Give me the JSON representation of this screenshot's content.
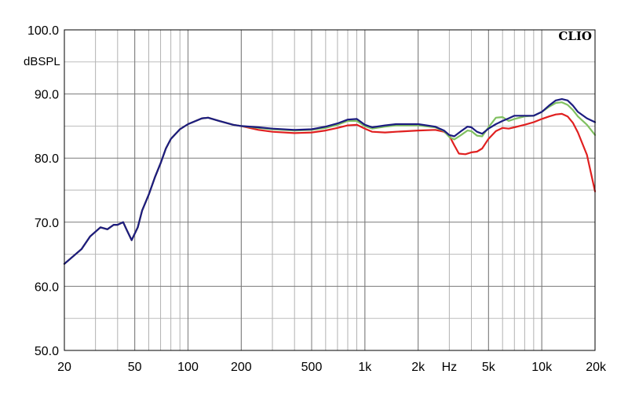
{
  "chart_data": {
    "type": "line",
    "title": "",
    "brand": "CLIO",
    "ylabel": "dBSPL",
    "xlabel": "Hz",
    "x_scale": "log",
    "xlim": [
      20,
      20000
    ],
    "ylim": [
      50,
      100
    ],
    "grid": true,
    "y_ticks": [
      {
        "value": 100,
        "label": "100.0"
      },
      {
        "value": 90,
        "label": "90.0"
      },
      {
        "value": 80,
        "label": "80.0"
      },
      {
        "value": 70,
        "label": "70.0"
      },
      {
        "value": 60,
        "label": "60.0"
      },
      {
        "value": 50,
        "label": "50.0"
      }
    ],
    "x_ticks": [
      {
        "value": 20,
        "label": "20"
      },
      {
        "value": 50,
        "label": "50"
      },
      {
        "value": 100,
        "label": "100"
      },
      {
        "value": 200,
        "label": "200"
      },
      {
        "value": 500,
        "label": "500"
      },
      {
        "value": 1000,
        "label": "1k"
      },
      {
        "value": 2000,
        "label": "2k"
      },
      {
        "value": 5000,
        "label": "5k"
      },
      {
        "value": 10000,
        "label": "10k"
      },
      {
        "value": 20000,
        "label": "20k"
      }
    ],
    "x_unit_label_at": 3000,
    "series": [
      {
        "color": "#e02020",
        "points": [
          [
            20,
            63.5
          ],
          [
            25,
            65.8
          ],
          [
            28,
            67.8
          ],
          [
            32,
            69.2
          ],
          [
            35,
            68.9
          ],
          [
            38,
            69.6
          ],
          [
            40,
            69.6
          ],
          [
            43,
            70
          ],
          [
            45,
            68.8
          ],
          [
            48,
            67.2
          ],
          [
            52,
            69.2
          ],
          [
            55,
            71.8
          ],
          [
            60,
            74.3
          ],
          [
            65,
            77
          ],
          [
            70,
            79.2
          ],
          [
            75,
            81.5
          ],
          [
            80,
            83
          ],
          [
            90,
            84.5
          ],
          [
            100,
            85.3
          ],
          [
            120,
            86.2
          ],
          [
            130,
            86.3
          ],
          [
            150,
            85.8
          ],
          [
            180,
            85.2
          ],
          [
            200,
            85
          ],
          [
            250,
            84.4
          ],
          [
            300,
            84.1
          ],
          [
            400,
            83.9
          ],
          [
            500,
            84
          ],
          [
            600,
            84.3
          ],
          [
            700,
            84.7
          ],
          [
            800,
            85.1
          ],
          [
            900,
            85.2
          ],
          [
            1000,
            84.6
          ],
          [
            1100,
            84.1
          ],
          [
            1300,
            84
          ],
          [
            1500,
            84.1
          ],
          [
            2000,
            84.3
          ],
          [
            2500,
            84.4
          ],
          [
            2800,
            84.1
          ],
          [
            3000,
            83.5
          ],
          [
            3200,
            82
          ],
          [
            3400,
            80.7
          ],
          [
            3700,
            80.6
          ],
          [
            4000,
            80.9
          ],
          [
            4300,
            81
          ],
          [
            4600,
            81.5
          ],
          [
            5000,
            83
          ],
          [
            5500,
            84.2
          ],
          [
            6000,
            84.7
          ],
          [
            6500,
            84.6
          ],
          [
            7000,
            84.8
          ],
          [
            8000,
            85.2
          ],
          [
            9000,
            85.6
          ],
          [
            10000,
            86.1
          ],
          [
            11000,
            86.5
          ],
          [
            12000,
            86.8
          ],
          [
            13000,
            86.9
          ],
          [
            14000,
            86.5
          ],
          [
            15000,
            85.5
          ],
          [
            16000,
            84
          ],
          [
            18000,
            80.5
          ],
          [
            20000,
            74.8
          ]
        ]
      },
      {
        "color": "#80c060",
        "points": [
          [
            20,
            63.5
          ],
          [
            25,
            65.8
          ],
          [
            28,
            67.8
          ],
          [
            32,
            69.2
          ],
          [
            35,
            68.9
          ],
          [
            38,
            69.6
          ],
          [
            40,
            69.6
          ],
          [
            43,
            70
          ],
          [
            45,
            68.8
          ],
          [
            48,
            67.2
          ],
          [
            52,
            69.2
          ],
          [
            55,
            71.8
          ],
          [
            60,
            74.3
          ],
          [
            65,
            77
          ],
          [
            70,
            79.2
          ],
          [
            75,
            81.5
          ],
          [
            80,
            83
          ],
          [
            90,
            84.5
          ],
          [
            100,
            85.3
          ],
          [
            120,
            86.2
          ],
          [
            130,
            86.3
          ],
          [
            150,
            85.8
          ],
          [
            180,
            85.2
          ],
          [
            200,
            85
          ],
          [
            250,
            84.7
          ],
          [
            300,
            84.5
          ],
          [
            400,
            84.3
          ],
          [
            500,
            84.4
          ],
          [
            600,
            84.7
          ],
          [
            700,
            85.2
          ],
          [
            800,
            85.8
          ],
          [
            900,
            85.8
          ],
          [
            1000,
            85
          ],
          [
            1100,
            84.6
          ],
          [
            1300,
            84.9
          ],
          [
            1500,
            85.1
          ],
          [
            2000,
            85.1
          ],
          [
            2500,
            84.8
          ],
          [
            2800,
            84.2
          ],
          [
            3000,
            83.3
          ],
          [
            3200,
            82.9
          ],
          [
            3500,
            83.6
          ],
          [
            3800,
            84.3
          ],
          [
            4000,
            84.2
          ],
          [
            4300,
            83.5
          ],
          [
            4600,
            83.4
          ],
          [
            5000,
            84.8
          ],
          [
            5500,
            86.3
          ],
          [
            6000,
            86.4
          ],
          [
            6500,
            85.8
          ],
          [
            7000,
            86.1
          ],
          [
            8000,
            86.5
          ],
          [
            9000,
            86.6
          ],
          [
            10000,
            87.2
          ],
          [
            11000,
            88
          ],
          [
            12000,
            88.6
          ],
          [
            13000,
            88.7
          ],
          [
            14000,
            88.3
          ],
          [
            15000,
            87.5
          ],
          [
            16000,
            86.5
          ],
          [
            18000,
            85.2
          ],
          [
            20000,
            83.6
          ]
        ]
      },
      {
        "color": "#1c1c80",
        "points": [
          [
            20,
            63.5
          ],
          [
            25,
            65.8
          ],
          [
            28,
            67.8
          ],
          [
            32,
            69.2
          ],
          [
            35,
            68.9
          ],
          [
            38,
            69.6
          ],
          [
            40,
            69.6
          ],
          [
            43,
            70
          ],
          [
            45,
            68.8
          ],
          [
            48,
            67.2
          ],
          [
            52,
            69.2
          ],
          [
            55,
            71.8
          ],
          [
            60,
            74.3
          ],
          [
            65,
            77
          ],
          [
            70,
            79.2
          ],
          [
            75,
            81.5
          ],
          [
            80,
            83
          ],
          [
            90,
            84.5
          ],
          [
            100,
            85.3
          ],
          [
            120,
            86.2
          ],
          [
            130,
            86.3
          ],
          [
            150,
            85.8
          ],
          [
            180,
            85.2
          ],
          [
            200,
            85
          ],
          [
            250,
            84.8
          ],
          [
            300,
            84.6
          ],
          [
            400,
            84.4
          ],
          [
            500,
            84.5
          ],
          [
            600,
            84.9
          ],
          [
            700,
            85.4
          ],
          [
            800,
            86
          ],
          [
            900,
            86.1
          ],
          [
            1000,
            85.2
          ],
          [
            1100,
            84.8
          ],
          [
            1300,
            85.1
          ],
          [
            1500,
            85.3
          ],
          [
            2000,
            85.3
          ],
          [
            2500,
            84.9
          ],
          [
            2800,
            84.3
          ],
          [
            3000,
            83.6
          ],
          [
            3200,
            83.4
          ],
          [
            3500,
            84.2
          ],
          [
            3800,
            84.9
          ],
          [
            4000,
            84.8
          ],
          [
            4300,
            84.1
          ],
          [
            4600,
            83.8
          ],
          [
            5000,
            84.6
          ],
          [
            5500,
            85.3
          ],
          [
            6000,
            85.8
          ],
          [
            6500,
            86.2
          ],
          [
            7000,
            86.6
          ],
          [
            8000,
            86.6
          ],
          [
            9000,
            86.6
          ],
          [
            10000,
            87.2
          ],
          [
            11000,
            88.2
          ],
          [
            12000,
            89
          ],
          [
            13000,
            89.2
          ],
          [
            14000,
            89
          ],
          [
            15000,
            88.2
          ],
          [
            16000,
            87.2
          ],
          [
            18000,
            86.2
          ],
          [
            20000,
            85.6
          ]
        ]
      }
    ]
  }
}
